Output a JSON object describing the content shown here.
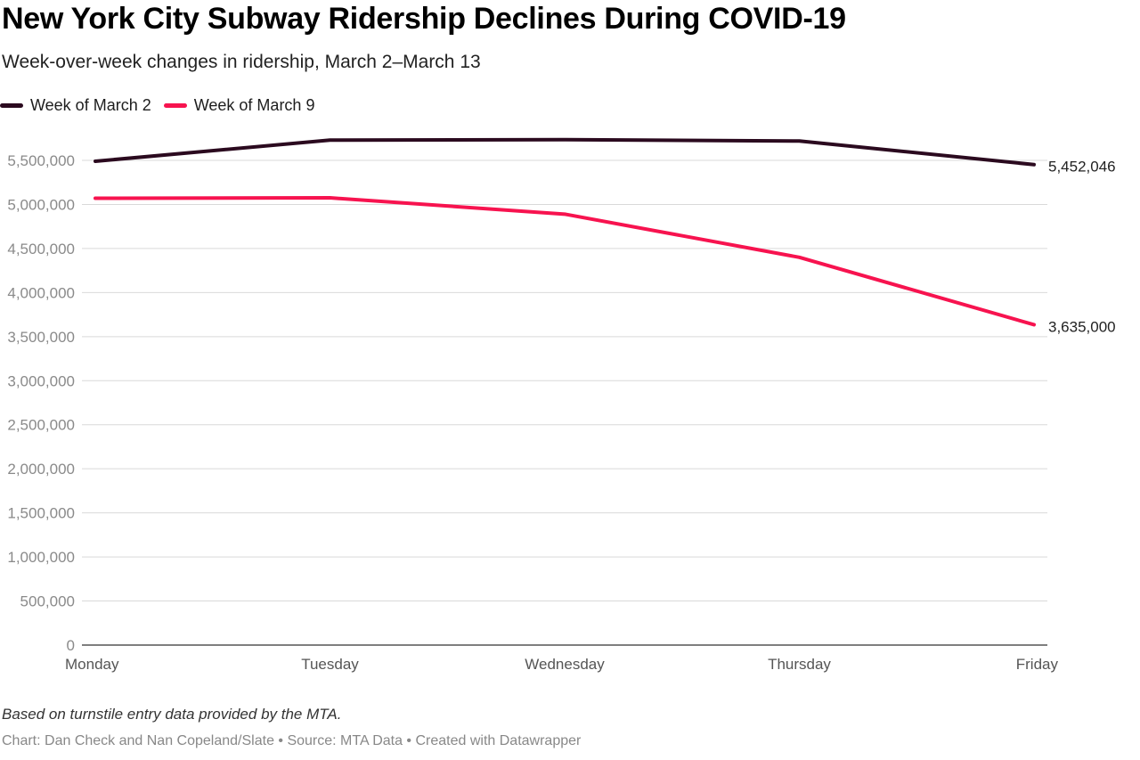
{
  "title": "New York City Subway Ridership Declines During COVID-19",
  "subtitle": "Week-over-week changes in ridership, March 2–March 13",
  "note": "Based on turnstile entry data provided by the MTA.",
  "credit": "Chart: Dan Check and Nan Copeland/Slate • Source: MTA Data • Created with Datawrapper",
  "chart_data": {
    "type": "line",
    "title": "New York City Subway Ridership Declines During COVID-19",
    "subtitle": "Week-over-week changes in ridership, March 2–March 13",
    "categories": [
      "Monday",
      "Tuesday",
      "Wednesday",
      "Thursday",
      "Friday"
    ],
    "series": [
      {
        "name": "Week of March 2",
        "color": "#2b0a1f",
        "values": [
          5490000,
          5730000,
          5735000,
          5720000,
          5452046
        ],
        "end_label": "5,452,046"
      },
      {
        "name": "Week of March 9",
        "color": "#f7134f",
        "values": [
          5070000,
          5075000,
          4890000,
          4400000,
          3635000
        ],
        "end_label": "3,635,000"
      }
    ],
    "ylim": [
      0,
      5500000
    ],
    "yticks": [
      0,
      500000,
      1000000,
      1500000,
      2000000,
      2500000,
      3000000,
      3500000,
      4000000,
      4500000,
      5000000,
      5500000
    ],
    "ytick_labels": [
      "0",
      "500,000",
      "1,000,000",
      "1,500,000",
      "2,000,000",
      "2,500,000",
      "3,000,000",
      "3,500,000",
      "4,000,000",
      "4,500,000",
      "5,000,000",
      "5,500,000"
    ],
    "grid": true,
    "legend": "top-left"
  }
}
